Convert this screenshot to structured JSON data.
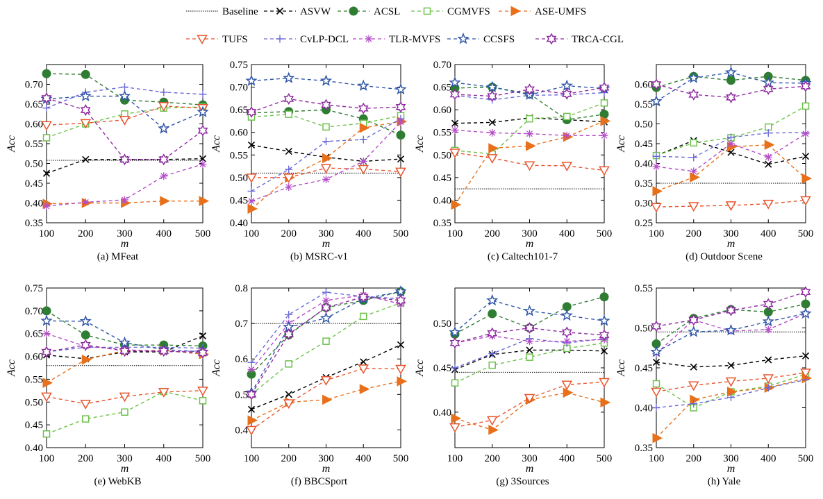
{
  "colors": {
    "Baseline": "#000000",
    "ASVW": "#000000",
    "ACSL": "#2e7d32",
    "CGMVFS": "#6cc24a",
    "ASE-UMFS": "#e8701a",
    "TUFS": "#e8552e",
    "CvLP-DCL": "#6a6ad8",
    "TLR-MVFS": "#b44cc8",
    "CCSFS": "#2f55a8",
    "TRCA-CGL": "#8e2aa0"
  },
  "legend": {
    "row1": [
      "Baseline",
      "ASVW",
      "ACSL",
      "CGMVFS",
      "ASE-UMFS"
    ],
    "row2": [
      "TUFS",
      "CvLP-DCL",
      "TLR-MVFS",
      "CCSFS",
      "TRCA-CGL"
    ]
  },
  "chart_data": [
    {
      "type": "line",
      "caption": "(a) MFeat",
      "xlabel": "m",
      "ylabel": "Acc",
      "x": [
        100,
        200,
        300,
        400,
        500
      ],
      "ylim": [
        0.35,
        0.75
      ],
      "yticks": [
        "0.35",
        "0.40",
        "0.45",
        "0.50",
        "0.55",
        "0.60",
        "0.65",
        "0.70"
      ],
      "series": [
        {
          "name": "Baseline",
          "values": [
            0.508,
            0.508,
            0.508,
            0.508,
            0.508
          ]
        },
        {
          "name": "ASVW",
          "values": [
            0.475,
            0.51,
            0.51,
            0.51,
            0.512
          ]
        },
        {
          "name": "ACSL",
          "values": [
            0.727,
            0.725,
            0.66,
            0.655,
            0.648
          ]
        },
        {
          "name": "CGMVFS",
          "values": [
            0.565,
            0.6,
            0.625,
            0.64,
            0.643
          ]
        },
        {
          "name": "ASE-UMFS",
          "values": [
            0.398,
            0.4,
            0.4,
            0.405,
            0.405
          ]
        },
        {
          "name": "TUFS",
          "values": [
            0.597,
            0.602,
            0.61,
            0.645,
            0.64
          ]
        },
        {
          "name": "CvLP-DCL",
          "values": [
            0.64,
            0.68,
            0.693,
            0.68,
            0.675
          ]
        },
        {
          "name": "TLR-MVFS",
          "values": [
            0.392,
            0.402,
            0.408,
            0.468,
            0.498
          ]
        },
        {
          "name": "CCSFS",
          "values": [
            0.663,
            0.67,
            0.67,
            0.588,
            0.63
          ]
        },
        {
          "name": "TRCA-CGL",
          "values": [
            0.665,
            0.635,
            0.51,
            0.51,
            0.583
          ]
        }
      ]
    },
    {
      "type": "line",
      "caption": "(b) MSRC-v1",
      "xlabel": "m",
      "ylabel": "Acc",
      "x": [
        100,
        200,
        300,
        400,
        500
      ],
      "ylim": [
        0.4,
        0.75
      ],
      "yticks": [
        "0.40",
        "0.45",
        "0.50",
        "0.55",
        "0.60",
        "0.65",
        "0.70",
        "0.75"
      ],
      "series": [
        {
          "name": "Baseline",
          "values": [
            0.51,
            0.51,
            0.51,
            0.51,
            0.51
          ]
        },
        {
          "name": "ASVW",
          "values": [
            0.572,
            0.558,
            0.545,
            0.536,
            0.541
          ]
        },
        {
          "name": "ACSL",
          "values": [
            0.643,
            0.646,
            0.65,
            0.63,
            0.594
          ]
        },
        {
          "name": "CGMVFS",
          "values": [
            0.634,
            0.64,
            0.612,
            0.62,
            0.637
          ]
        },
        {
          "name": "ASE-UMFS",
          "values": [
            0.431,
            0.5,
            0.543,
            0.61,
            0.624
          ]
        },
        {
          "name": "TUFS",
          "values": [
            0.5,
            0.5,
            0.521,
            0.519,
            0.513
          ]
        },
        {
          "name": "CvLP-DCL",
          "values": [
            0.47,
            0.518,
            0.58,
            0.584,
            0.63
          ]
        },
        {
          "name": "TLR-MVFS",
          "values": [
            0.448,
            0.479,
            0.496,
            0.536,
            0.623
          ]
        },
        {
          "name": "CCSFS",
          "values": [
            0.714,
            0.72,
            0.714,
            0.703,
            0.695
          ]
        },
        {
          "name": "TRCA-CGL",
          "values": [
            0.645,
            0.674,
            0.661,
            0.653,
            0.656
          ]
        }
      ]
    },
    {
      "type": "line",
      "caption": "(c) Caltech101-7",
      "xlabel": "m",
      "ylabel": "Acc",
      "x": [
        100,
        200,
        300,
        400,
        500
      ],
      "ylim": [
        0.35,
        0.7
      ],
      "yticks": [
        "0.35",
        "0.40",
        "0.45",
        "0.50",
        "0.55",
        "0.60",
        "0.65",
        "0.70"
      ],
      "series": [
        {
          "name": "Baseline",
          "values": [
            0.425,
            0.425,
            0.425,
            0.425,
            0.425
          ]
        },
        {
          "name": "ASVW",
          "values": [
            0.57,
            0.572,
            0.582,
            0.578,
            0.573
          ]
        },
        {
          "name": "ACSL",
          "values": [
            0.648,
            0.65,
            0.635,
            0.578,
            0.59
          ]
        },
        {
          "name": "CGMVFS",
          "values": [
            0.51,
            0.502,
            0.58,
            0.585,
            0.615
          ]
        },
        {
          "name": "ASE-UMFS",
          "values": [
            0.39,
            0.515,
            0.52,
            0.54,
            0.575
          ]
        },
        {
          "name": "TUFS",
          "values": [
            0.505,
            0.493,
            0.477,
            0.476,
            0.466
          ]
        },
        {
          "name": "CvLP-DCL",
          "values": [
            0.632,
            0.622,
            0.632,
            0.633,
            0.638
          ]
        },
        {
          "name": "TLR-MVFS",
          "values": [
            0.555,
            0.549,
            0.547,
            0.543,
            0.543
          ]
        },
        {
          "name": "CCSFS",
          "values": [
            0.66,
            0.65,
            0.633,
            0.653,
            0.647
          ]
        },
        {
          "name": "TRCA-CGL",
          "values": [
            0.634,
            0.63,
            0.645,
            0.635,
            0.649
          ]
        }
      ]
    },
    {
      "type": "line",
      "caption": "(d) Outdoor Scene",
      "xlabel": "m",
      "ylabel": "Acc",
      "x": [
        100,
        200,
        300,
        400,
        500
      ],
      "ylim": [
        0.25,
        0.65
      ],
      "yticks": [
        "0.25",
        "0.30",
        "0.35",
        "0.40",
        "0.45",
        "0.50",
        "0.55",
        "0.60"
      ],
      "series": [
        {
          "name": "Baseline",
          "values": [
            0.35,
            0.35,
            0.35,
            0.35,
            0.35
          ]
        },
        {
          "name": "ASVW",
          "values": [
            0.42,
            0.458,
            0.428,
            0.398,
            0.418
          ]
        },
        {
          "name": "ACSL",
          "values": [
            0.592,
            0.62,
            0.61,
            0.62,
            0.61
          ]
        },
        {
          "name": "CGMVFS",
          "values": [
            0.42,
            0.452,
            0.465,
            0.492,
            0.545
          ]
        },
        {
          "name": "ASE-UMFS",
          "values": [
            0.33,
            0.365,
            0.442,
            0.447,
            0.362
          ]
        },
        {
          "name": "TUFS",
          "values": [
            0.29,
            0.292,
            0.294,
            0.298,
            0.307
          ]
        },
        {
          "name": "CvLP-DCL",
          "values": [
            0.418,
            0.415,
            0.466,
            0.477,
            0.478
          ]
        },
        {
          "name": "TLR-MVFS",
          "values": [
            0.392,
            0.38,
            0.45,
            0.416,
            0.475
          ]
        },
        {
          "name": "CCSFS",
          "values": [
            0.557,
            0.616,
            0.63,
            0.604,
            0.603
          ]
        },
        {
          "name": "TRCA-CGL",
          "values": [
            0.6,
            0.574,
            0.567,
            0.588,
            0.595
          ]
        }
      ]
    },
    {
      "type": "line",
      "caption": "(e) WebKB",
      "xlabel": "m",
      "ylabel": "Acc",
      "x": [
        100,
        200,
        300,
        400,
        500
      ],
      "ylim": [
        0.4,
        0.75
      ],
      "yticks": [
        "0.40",
        "0.45",
        "0.50",
        "0.55",
        "0.60",
        "0.65",
        "0.70",
        "0.75"
      ],
      "series": [
        {
          "name": "Baseline",
          "values": [
            0.58,
            0.58,
            0.58,
            0.58,
            0.58
          ]
        },
        {
          "name": "ASVW",
          "values": [
            0.603,
            0.595,
            0.61,
            0.61,
            0.645
          ]
        },
        {
          "name": "ACSL",
          "values": [
            0.7,
            0.647,
            0.625,
            0.625,
            0.623
          ]
        },
        {
          "name": "CGMVFS",
          "values": [
            0.43,
            0.463,
            0.478,
            0.523,
            0.503
          ]
        },
        {
          "name": "ASE-UMFS",
          "values": [
            0.542,
            0.593,
            0.613,
            0.613,
            0.605
          ]
        },
        {
          "name": "TUFS",
          "values": [
            0.512,
            0.496,
            0.512,
            0.522,
            0.525
          ]
        },
        {
          "name": "CvLP-DCL",
          "values": [
            0.61,
            0.62,
            0.62,
            0.62,
            0.618
          ]
        },
        {
          "name": "TLR-MVFS",
          "values": [
            0.65,
            0.622,
            0.615,
            0.61,
            0.612
          ]
        },
        {
          "name": "CCSFS",
          "values": [
            0.678,
            0.677,
            0.63,
            0.615,
            0.61
          ]
        },
        {
          "name": "TRCA-CGL",
          "values": [
            0.61,
            0.625,
            0.612,
            0.612,
            0.608
          ]
        }
      ]
    },
    {
      "type": "line",
      "caption": "(f) BBCSport",
      "xlabel": "m",
      "ylabel": "Acc",
      "x": [
        100,
        200,
        300,
        400,
        500
      ],
      "ylim": [
        0.35,
        0.8
      ],
      "yticks": [
        "0.4",
        "0.5",
        "0.6",
        "0.7",
        "0.8"
      ],
      "series": [
        {
          "name": "Baseline",
          "values": [
            0.7,
            0.7,
            0.7,
            0.7,
            0.7
          ]
        },
        {
          "name": "ASVW",
          "values": [
            0.458,
            0.5,
            0.548,
            0.592,
            0.64
          ]
        },
        {
          "name": "ACSL",
          "values": [
            0.557,
            0.668,
            0.745,
            0.765,
            0.79
          ]
        },
        {
          "name": "CGMVFS",
          "values": [
            0.5,
            0.586,
            0.65,
            0.72,
            0.758
          ]
        },
        {
          "name": "ASE-UMFS",
          "values": [
            0.427,
            0.478,
            0.485,
            0.515,
            0.537
          ]
        },
        {
          "name": "TUFS",
          "values": [
            0.4,
            0.475,
            0.54,
            0.573,
            0.572
          ]
        },
        {
          "name": "CvLP-DCL",
          "values": [
            0.59,
            0.725,
            0.788,
            0.776,
            0.77
          ]
        },
        {
          "name": "TLR-MVFS",
          "values": [
            0.57,
            0.7,
            0.765,
            0.78,
            0.755
          ]
        },
        {
          "name": "CCSFS",
          "values": [
            0.505,
            0.69,
            0.715,
            0.77,
            0.79
          ]
        },
        {
          "name": "TRCA-CGL",
          "values": [
            0.5,
            0.67,
            0.745,
            0.775,
            0.765
          ]
        }
      ]
    },
    {
      "type": "line",
      "caption": "(g) 3Sources",
      "xlabel": "m",
      "ylabel": "Acc",
      "x": [
        100,
        200,
        300,
        400,
        500
      ],
      "ylim": [
        0.36,
        0.54
      ],
      "yticks": [
        "0.40",
        "0.45",
        "0.50"
      ],
      "series": [
        {
          "name": "Baseline",
          "values": [
            0.445,
            0.445,
            0.445,
            0.445,
            0.445
          ]
        },
        {
          "name": "ASVW",
          "values": [
            0.448,
            0.465,
            0.47,
            0.47,
            0.469
          ]
        },
        {
          "name": "ACSL",
          "values": [
            0.488,
            0.511,
            0.495,
            0.519,
            0.53
          ]
        },
        {
          "name": "CGMVFS",
          "values": [
            0.433,
            0.453,
            0.462,
            0.472,
            0.478
          ]
        },
        {
          "name": "ASE-UMFS",
          "values": [
            0.393,
            0.38,
            0.414,
            0.422,
            0.411
          ]
        },
        {
          "name": "TUFS",
          "values": [
            0.383,
            0.391,
            0.416,
            0.431,
            0.434
          ]
        },
        {
          "name": "CvLP-DCL",
          "values": [
            0.45,
            0.466,
            0.483,
            0.478,
            0.483
          ]
        },
        {
          "name": "TLR-MVFS",
          "values": [
            0.478,
            0.486,
            0.48,
            0.48,
            0.482
          ]
        },
        {
          "name": "CCSFS",
          "values": [
            0.49,
            0.526,
            0.514,
            0.509,
            0.503
          ]
        },
        {
          "name": "TRCA-CGL",
          "values": [
            0.478,
            0.489,
            0.495,
            0.49,
            0.487
          ]
        }
      ]
    },
    {
      "type": "line",
      "caption": "(h) Yale",
      "xlabel": "m",
      "ylabel": "Acc",
      "x": [
        100,
        200,
        300,
        400,
        500
      ],
      "ylim": [
        0.35,
        0.55
      ],
      "yticks": [
        "0.35",
        "0.40",
        "0.45",
        "0.50",
        "0.55"
      ],
      "series": [
        {
          "name": "Baseline",
          "values": [
            0.495,
            0.495,
            0.495,
            0.495,
            0.495
          ]
        },
        {
          "name": "ASVW",
          "values": [
            0.457,
            0.451,
            0.453,
            0.46,
            0.465
          ]
        },
        {
          "name": "ACSL",
          "values": [
            0.48,
            0.512,
            0.523,
            0.52,
            0.53
          ]
        },
        {
          "name": "CGMVFS",
          "values": [
            0.43,
            0.4,
            0.42,
            0.427,
            0.442
          ]
        },
        {
          "name": "ASE-UMFS",
          "values": [
            0.362,
            0.41,
            0.42,
            0.425,
            0.437
          ]
        },
        {
          "name": "TUFS",
          "values": [
            0.42,
            0.428,
            0.433,
            0.437,
            0.444
          ]
        },
        {
          "name": "CvLP-DCL",
          "values": [
            0.4,
            0.405,
            0.413,
            0.425,
            0.435
          ]
        },
        {
          "name": "TLR-MVFS",
          "values": [
            0.468,
            0.51,
            0.496,
            0.498,
            0.518
          ]
        },
        {
          "name": "CCSFS",
          "values": [
            0.47,
            0.495,
            0.497,
            0.508,
            0.518
          ]
        },
        {
          "name": "TRCA-CGL",
          "values": [
            0.502,
            0.51,
            0.522,
            0.53,
            0.545
          ]
        }
      ]
    }
  ]
}
